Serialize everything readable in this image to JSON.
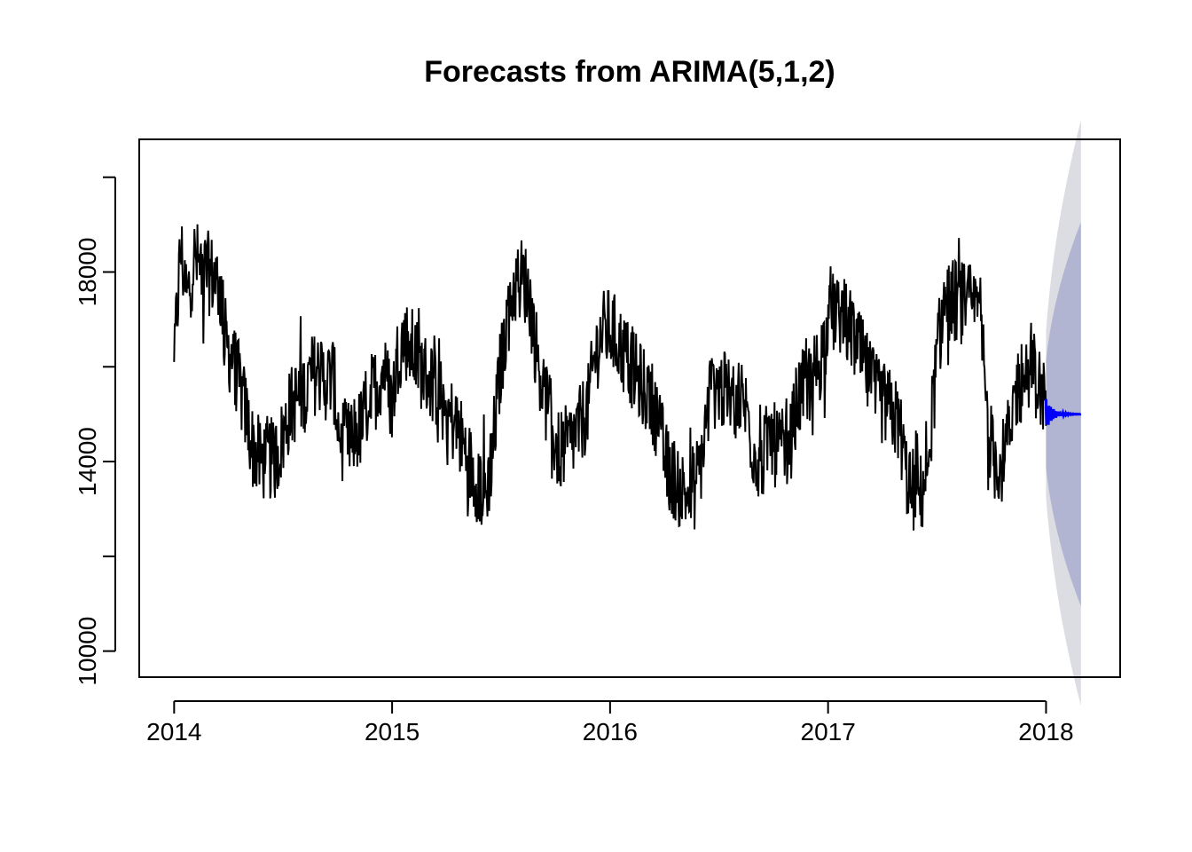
{
  "chart_data": {
    "type": "line",
    "title": "Forecasts from ARIMA(5,1,2)",
    "xlabel": "",
    "ylabel": "",
    "xlim": [
      2013.84,
      2018.34
    ],
    "ylim": [
      9450,
      20800
    ],
    "x_ticks": [
      2014,
      2015,
      2016,
      2017,
      2018
    ],
    "x_tick_labels": [
      "2014",
      "2015",
      "2016",
      "2017",
      "2018"
    ],
    "y_ticks": [
      10000,
      12000,
      14000,
      16000,
      18000,
      20000
    ],
    "y_tick_labels": [
      "10000",
      "",
      "14000",
      "",
      "18000",
      ""
    ],
    "grid": false,
    "legend": "none",
    "colors": {
      "history": "#000000",
      "forecast": "#0000ff",
      "band80": "#b1b5d1",
      "band95": "#dcdde2",
      "frame": "#000000"
    },
    "history_anchors": [
      [
        2014.0,
        16100
      ],
      [
        2014.03,
        18500
      ],
      [
        2014.06,
        17400
      ],
      [
        2014.09,
        18300
      ],
      [
        2014.12,
        18100
      ],
      [
        2014.15,
        18000
      ],
      [
        2014.18,
        17900
      ],
      [
        2014.21,
        17700
      ],
      [
        2014.24,
        16400
      ],
      [
        2014.27,
        16200
      ],
      [
        2014.3,
        15600
      ],
      [
        2014.33,
        15000
      ],
      [
        2014.36,
        14300
      ],
      [
        2014.4,
        14000
      ],
      [
        2014.43,
        14100
      ],
      [
        2014.46,
        14000
      ],
      [
        2014.5,
        14500
      ],
      [
        2014.53,
        15100
      ],
      [
        2014.56,
        15300
      ],
      [
        2014.6,
        15500
      ],
      [
        2014.63,
        15800
      ],
      [
        2014.66,
        15900
      ],
      [
        2014.7,
        15700
      ],
      [
        2014.73,
        15800
      ],
      [
        2014.76,
        14500
      ],
      [
        2014.8,
        14400
      ],
      [
        2014.83,
        14600
      ],
      [
        2014.86,
        14700
      ],
      [
        2014.89,
        15300
      ],
      [
        2014.93,
        15600
      ],
      [
        2014.96,
        16000
      ],
      [
        2015.0,
        15200
      ],
      [
        2015.03,
        16400
      ],
      [
        2015.06,
        16600
      ],
      [
        2015.1,
        16300
      ],
      [
        2015.13,
        16000
      ],
      [
        2015.16,
        15800
      ],
      [
        2015.2,
        15600
      ],
      [
        2015.23,
        15300
      ],
      [
        2015.26,
        15000
      ],
      [
        2015.3,
        14700
      ],
      [
        2015.33,
        14300
      ],
      [
        2015.36,
        13900
      ],
      [
        2015.4,
        13500
      ],
      [
        2015.43,
        13300
      ],
      [
        2015.46,
        14200
      ],
      [
        2015.5,
        16100
      ],
      [
        2015.53,
        17100
      ],
      [
        2015.56,
        17700
      ],
      [
        2015.6,
        17900
      ],
      [
        2015.63,
        17500
      ],
      [
        2015.66,
        16400
      ],
      [
        2015.7,
        15400
      ],
      [
        2015.73,
        14800
      ],
      [
        2015.76,
        14200
      ],
      [
        2015.8,
        14300
      ],
      [
        2015.83,
        14500
      ],
      [
        2015.86,
        14700
      ],
      [
        2015.9,
        15200
      ],
      [
        2015.93,
        16200
      ],
      [
        2015.96,
        16700
      ],
      [
        2016.0,
        16800
      ],
      [
        2016.03,
        16600
      ],
      [
        2016.06,
        16300
      ],
      [
        2016.1,
        16000
      ],
      [
        2016.13,
        15700
      ],
      [
        2016.16,
        15500
      ],
      [
        2016.2,
        15200
      ],
      [
        2016.23,
        14600
      ],
      [
        2016.26,
        13900
      ],
      [
        2016.3,
        13600
      ],
      [
        2016.33,
        13400
      ],
      [
        2016.36,
        13300
      ],
      [
        2016.4,
        13500
      ],
      [
        2016.43,
        14400
      ],
      [
        2016.46,
        15500
      ],
      [
        2016.5,
        15600
      ],
      [
        2016.53,
        15400
      ],
      [
        2016.56,
        15300
      ],
      [
        2016.6,
        15400
      ],
      [
        2016.63,
        15000
      ],
      [
        2016.66,
        14200
      ],
      [
        2016.7,
        14000
      ],
      [
        2016.73,
        14600
      ],
      [
        2016.76,
        14300
      ],
      [
        2016.8,
        14200
      ],
      [
        2016.83,
        14500
      ],
      [
        2016.86,
        15300
      ],
      [
        2016.9,
        15600
      ],
      [
        2016.93,
        15800
      ],
      [
        2016.96,
        16100
      ],
      [
        2017.0,
        16800
      ],
      [
        2017.03,
        17200
      ],
      [
        2017.06,
        17100
      ],
      [
        2017.1,
        16800
      ],
      [
        2017.13,
        16500
      ],
      [
        2017.16,
        16100
      ],
      [
        2017.2,
        15600
      ],
      [
        2017.23,
        15300
      ],
      [
        2017.26,
        15200
      ],
      [
        2017.3,
        15000
      ],
      [
        2017.33,
        14700
      ],
      [
        2017.36,
        13700
      ],
      [
        2017.4,
        13300
      ],
      [
        2017.43,
        13300
      ],
      [
        2017.46,
        14100
      ],
      [
        2017.5,
        16200
      ],
      [
        2017.53,
        17300
      ],
      [
        2017.56,
        17400
      ],
      [
        2017.6,
        17400
      ],
      [
        2017.63,
        17300
      ],
      [
        2017.66,
        17300
      ],
      [
        2017.7,
        17100
      ],
      [
        2017.73,
        14900
      ],
      [
        2017.76,
        14000
      ],
      [
        2017.8,
        14000
      ],
      [
        2017.83,
        14500
      ],
      [
        2017.86,
        15500
      ],
      [
        2017.9,
        15800
      ],
      [
        2017.93,
        16100
      ],
      [
        2017.96,
        15700
      ],
      [
        2018.0,
        15200
      ]
    ],
    "history_noise_amplitude": 900,
    "forecast": {
      "x_start": 2018.0,
      "x_end": 2018.16,
      "mean": 15000,
      "oscillation_start_amplitude": 320,
      "lo80_end": 10950,
      "hi80_end": 19050,
      "lo95_end": 8850,
      "hi95_end": 21200
    }
  }
}
